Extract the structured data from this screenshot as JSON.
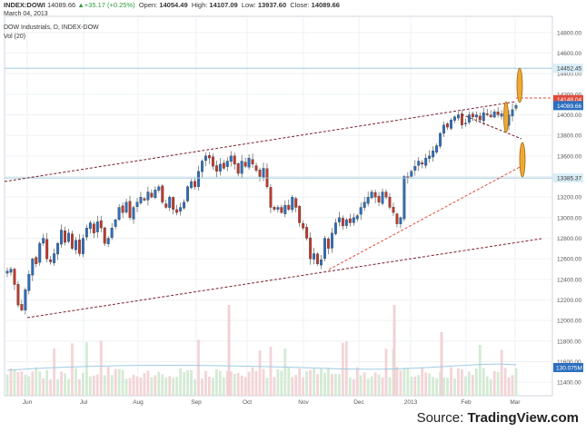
{
  "header": {
    "symbol": "INDEX:DOWI",
    "price": "14089.66",
    "change": "+35.17 (+0.25%)",
    "open_label": "Open:",
    "open": "14054.49",
    "high_label": "High:",
    "high": "14107.09",
    "low_label": "Low:",
    "low": "13937.60",
    "close_label": "Close:",
    "close": "14089.66",
    "date": "March 04, 2013",
    "title": "DOW Industrials, D, INDEX-DOW",
    "vol": "Vol (20)"
  },
  "source": {
    "prefix": "Source: ",
    "brand": "TradingView.com"
  },
  "chart_data": {
    "type": "candlestick",
    "title": "DOW Industrials, D, INDEX-DOW",
    "ylim": [
      11300,
      14900
    ],
    "y_ticks": [
      11400,
      11600,
      11800,
      12000,
      12200,
      12400,
      12600,
      12800,
      13000,
      13200,
      13400,
      13600,
      13800,
      14000,
      14200,
      14400,
      14600,
      14800
    ],
    "x_tick_labels": [
      "Jun",
      "Jul",
      "Aug",
      "Sep",
      "Oct",
      "Nov",
      "Dec",
      "2013",
      "Feb",
      "Mar"
    ],
    "series_close_path": [
      12480,
      12500,
      12350,
      12150,
      12101,
      12300,
      12450,
      12600,
      12550,
      12750,
      12800,
      12600,
      12570,
      12650,
      12750,
      12880,
      12760,
      12850,
      12700,
      12780,
      12650,
      12800,
      12900,
      12950,
      12850,
      12960,
      12900,
      12750,
      12800,
      12900,
      12980,
      13100,
      13050,
      13150,
      13000,
      13100,
      13150,
      13200,
      13170,
      13250,
      13200,
      13270,
      13300,
      13150,
      13100,
      13200,
      13080,
      13050,
      13100,
      13150,
      13300,
      13350,
      13300,
      13450,
      13550,
      13600,
      13580,
      13500,
      13450,
      13520,
      13480,
      13550,
      13600,
      13520,
      13430,
      13550,
      13500,
      13580,
      13520,
      13460,
      13400,
      13480,
      13300,
      13100,
      13080,
      13100,
      13050,
      13120,
      13080,
      13200,
      13100,
      12950,
      12900,
      12800,
      12600,
      12650,
      12550,
      12590,
      12800,
      12700,
      12850,
      12950,
      13000,
      12920,
      12980,
      12950,
      13000,
      13020,
      13100,
      13150,
      13200,
      13250,
      13200,
      13150,
      13250,
      13200,
      13100,
      13050,
      12940,
      13000,
      13400,
      13390,
      13450,
      13500,
      13550,
      13520,
      13580,
      13600,
      13650,
      13700,
      13820,
      13900,
      13880,
      13950,
      13980,
      14000,
      13900,
      13920,
      14000,
      13980,
      14000,
      13950,
      14020,
      14000,
      13980,
      14030,
      14000,
      14010,
      13900,
      14000,
      14050,
      14090
    ],
    "annotations": [
      {
        "type": "horizontal_line",
        "value": 14452.45,
        "label": "14452.45"
      },
      {
        "type": "horizontal_line",
        "value": 13385.37,
        "label": "13385.37"
      },
      {
        "type": "horizontal_line",
        "value": 14148.04,
        "label": "14148.04",
        "style": "dotted-red"
      },
      {
        "type": "last_price",
        "value": 14089.66,
        "label": "14089.66"
      }
    ],
    "volume_label": "130.075M",
    "grid": true
  }
}
